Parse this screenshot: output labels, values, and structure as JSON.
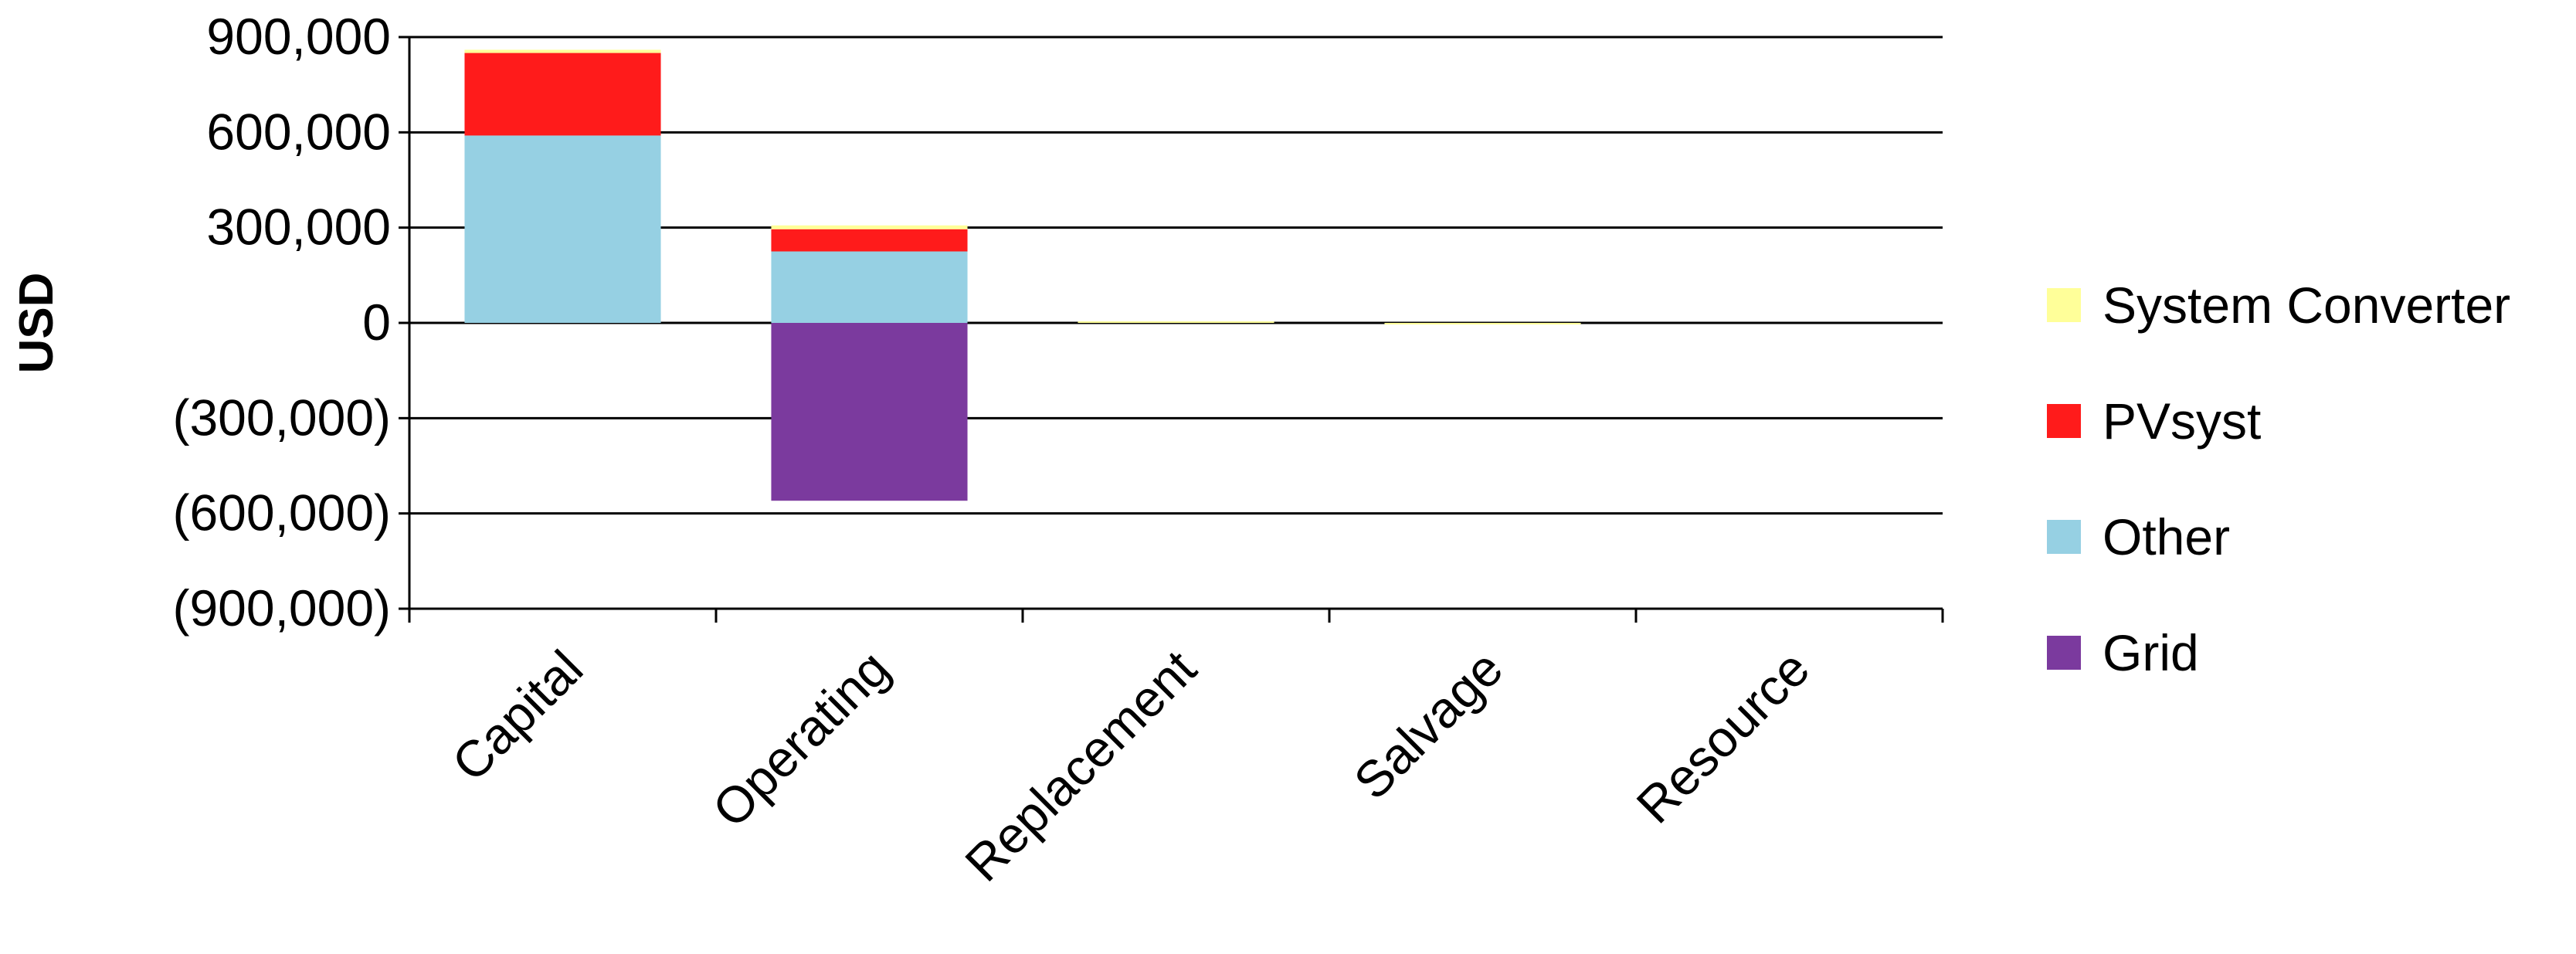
{
  "chart_data": {
    "type": "bar",
    "stacked": true,
    "title": "",
    "xlabel": "",
    "ylabel": "USD",
    "ylim": [
      -900000,
      900000
    ],
    "ytick_values": [
      900000,
      600000,
      300000,
      0,
      -300000,
      -600000,
      -900000
    ],
    "ytick_labels": [
      "900,000",
      "600,000",
      "300,000",
      "0",
      "(300,000)",
      "(600,000)",
      "(900,000)"
    ],
    "categories": [
      "Capital",
      "Operating",
      "Replacement",
      "Salvage",
      "Resource"
    ],
    "series": [
      {
        "name": "Grid",
        "color": "#7B3A9E",
        "values": [
          0,
          -560000,
          0,
          0,
          0
        ]
      },
      {
        "name": "Other",
        "color": "#96D0E3",
        "values": [
          590000,
          225000,
          0,
          0,
          0
        ]
      },
      {
        "name": "PVsyst",
        "color": "#FF1B1B",
        "values": [
          260000,
          70000,
          0,
          0,
          0
        ]
      },
      {
        "name": "System Converter",
        "color": "#FFFF99",
        "values": [
          10000,
          12000,
          5000,
          -3000,
          0
        ]
      }
    ],
    "legend_order": [
      "System Converter",
      "PVsyst",
      "Other",
      "Grid"
    ],
    "grid": true,
    "legend_position": "right"
  }
}
